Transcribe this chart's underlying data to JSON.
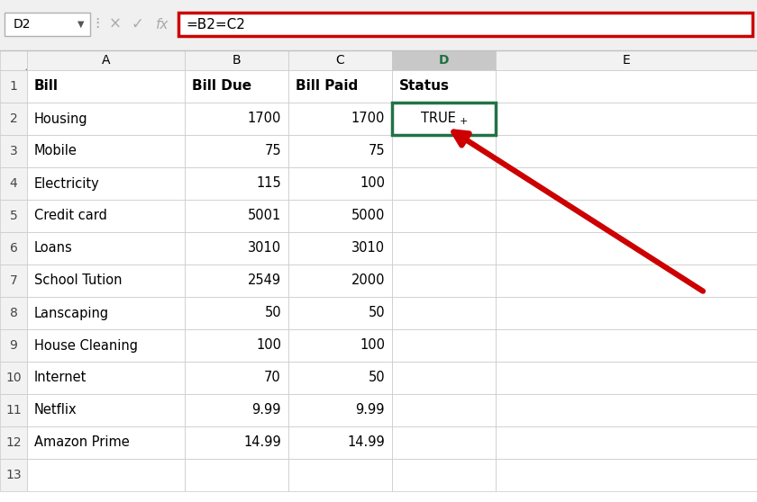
{
  "formula_bar_text": "=B2=C2",
  "cell_ref": "D2",
  "headers": [
    "Bill",
    "Bill Due",
    "Bill Paid",
    "Status"
  ],
  "data": [
    [
      "Housing",
      "1700",
      "1700",
      "TRUE"
    ],
    [
      "Mobile",
      "75",
      "75",
      ""
    ],
    [
      "Electricity",
      "115",
      "100",
      ""
    ],
    [
      "Credit card",
      "5001",
      "5000",
      ""
    ],
    [
      "Loans",
      "3010",
      "3010",
      ""
    ],
    [
      "School Tution",
      "2549",
      "2000",
      ""
    ],
    [
      "Lanscaping",
      "50",
      "50",
      ""
    ],
    [
      "House Cleaning",
      "100",
      "100",
      ""
    ],
    [
      "Internet",
      "70",
      "50",
      ""
    ],
    [
      "Netflix",
      "9.99",
      "9.99",
      ""
    ],
    [
      "Amazon Prime",
      "14.99",
      "14.99",
      ""
    ],
    [
      "",
      "",
      "",
      ""
    ]
  ],
  "bg_color": "#ffffff",
  "col_header_bg": "#f2f2f2",
  "col_header_selected_bg": "#c8c8c8",
  "col_header_selected_text": "#1f7244",
  "row_num_bg": "#f2f2f2",
  "grid_color": "#c8c8c8",
  "active_cell_border": "#217346",
  "formula_box_border": "#cc0000",
  "toolbar_bg": "#f0f0f0",
  "arrow_color": "#cc0000",
  "formula_font_size": 11,
  "cell_font_size": 10.5,
  "header_font_size": 11,
  "col_letter_font_size": 10,
  "row_num_font_size": 10
}
